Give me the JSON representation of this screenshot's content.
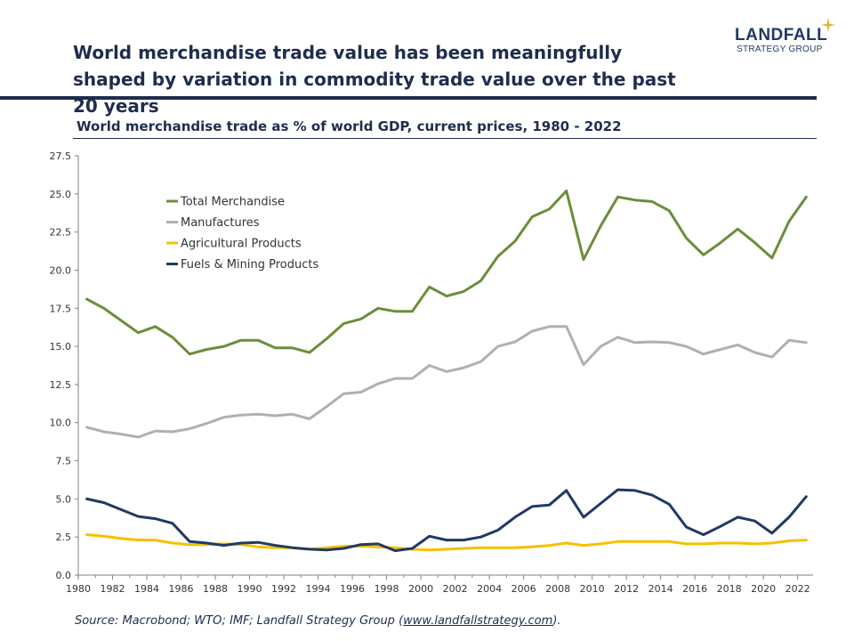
{
  "headline": "World merchandise trade value has been meaningfully shaped by variation in commodity trade value over the past 20 years",
  "logo": {
    "main": "LANDFALL",
    "sub": "STRATEGY GROUP",
    "star_color": "#e0b43a"
  },
  "source": {
    "prefix": "Source: Macrobond; WTO; IMF; Landfall Strategy Group (",
    "link": "www.landfallstrategy.com",
    "suffix": ")."
  },
  "chart_data": {
    "type": "line",
    "title": "World merchandise trade as % of world GDP, current prices, 1980 - 2022",
    "xlabel": "",
    "ylabel": "",
    "ylim": [
      0,
      27.5
    ],
    "xlim": [
      1980,
      2022.9
    ],
    "yticks": [
      "0.0",
      "2.5",
      "5.0",
      "7.5",
      "10.0",
      "12.5",
      "15.0",
      "17.5",
      "20.0",
      "22.5",
      "25.0",
      "27.5"
    ],
    "xticks": [
      "1980",
      "1982",
      "1984",
      "1986",
      "1988",
      "1990",
      "1992",
      "1994",
      "1996",
      "1998",
      "2000",
      "2002",
      "2004",
      "2006",
      "2008",
      "2010",
      "2012",
      "2014",
      "2016",
      "2018",
      "2020",
      "2022"
    ],
    "grid": false,
    "legend_position": "upper-left",
    "x": [
      1980.5,
      1981.5,
      1982.5,
      1983.5,
      1984.5,
      1985.5,
      1986.5,
      1987.5,
      1988.5,
      1989.5,
      1990.5,
      1991.5,
      1992.5,
      1993.5,
      1994.5,
      1995.5,
      1996.5,
      1997.5,
      1998.5,
      1999.5,
      2000.5,
      2001.5,
      2002.5,
      2003.5,
      2004.5,
      2005.5,
      2006.5,
      2007.5,
      2008.5,
      2009.5,
      2010.5,
      2011.5,
      2012.5,
      2013.5,
      2014.5,
      2015.5,
      2016.5,
      2017.5,
      2018.5,
      2019.5,
      2020.5,
      2021.5,
      2022.5
    ],
    "series": [
      {
        "name": "Total Merchandise",
        "color": "#6b8e3a",
        "values": [
          18.1,
          17.5,
          16.7,
          15.9,
          16.3,
          15.6,
          14.5,
          14.8,
          15.0,
          15.4,
          15.4,
          14.9,
          14.9,
          14.6,
          15.5,
          16.5,
          16.8,
          17.5,
          17.3,
          17.3,
          18.9,
          18.3,
          18.6,
          19.3,
          20.9,
          21.9,
          23.5,
          24.0,
          25.2,
          20.7,
          22.9,
          24.8,
          24.6,
          24.5,
          23.9,
          22.1,
          21.0,
          21.8,
          22.7,
          21.8,
          20.8,
          23.2,
          24.8
        ]
      },
      {
        "name": "Manufactures",
        "color": "#b0b0b0",
        "values": [
          9.7,
          9.4,
          9.25,
          9.05,
          9.45,
          9.4,
          9.6,
          9.95,
          10.35,
          10.5,
          10.55,
          10.45,
          10.55,
          10.25,
          11.05,
          11.9,
          12.0,
          12.55,
          12.9,
          12.9,
          13.75,
          13.35,
          13.6,
          14.0,
          15.0,
          15.3,
          16.0,
          16.3,
          16.3,
          13.8,
          15.0,
          15.6,
          15.25,
          15.3,
          15.25,
          15.0,
          14.5,
          14.8,
          15.1,
          14.6,
          14.3,
          15.4,
          15.25
        ]
      },
      {
        "name": "Agricultural Products",
        "color": "#f5c000",
        "values": [
          2.65,
          2.55,
          2.4,
          2.3,
          2.3,
          2.1,
          2.0,
          2.0,
          2.05,
          2.0,
          1.85,
          1.8,
          1.8,
          1.7,
          1.8,
          1.9,
          1.9,
          1.85,
          1.8,
          1.7,
          1.65,
          1.7,
          1.75,
          1.8,
          1.8,
          1.8,
          1.85,
          1.95,
          2.1,
          1.95,
          2.05,
          2.2,
          2.2,
          2.2,
          2.2,
          2.05,
          2.05,
          2.1,
          2.1,
          2.05,
          2.1,
          2.25,
          2.3
        ]
      },
      {
        "name": "Fuels & Mining Products",
        "color": "#1f3a64",
        "values": [
          5.0,
          4.75,
          4.3,
          3.85,
          3.7,
          3.4,
          2.2,
          2.1,
          1.95,
          2.1,
          2.15,
          1.95,
          1.8,
          1.7,
          1.65,
          1.75,
          2.0,
          2.05,
          1.6,
          1.75,
          2.55,
          2.3,
          2.3,
          2.5,
          2.95,
          3.8,
          4.5,
          4.6,
          5.55,
          3.8,
          4.7,
          5.6,
          5.55,
          5.25,
          4.65,
          3.15,
          2.65,
          3.2,
          3.8,
          3.55,
          2.75,
          3.8,
          5.15
        ]
      }
    ]
  }
}
